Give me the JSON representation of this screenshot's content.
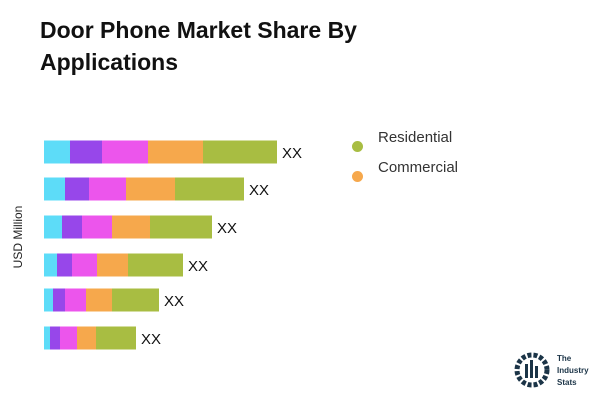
{
  "chart_data": {
    "type": "bar",
    "orientation": "horizontal",
    "stacked": true,
    "title": "Door Phone Market Share By Applications",
    "ylabel": "USD Million",
    "data_labels": [
      "XX",
      "XX",
      "XX",
      "XX",
      "XX",
      "XX"
    ],
    "segment_colors": [
      "#5ddcf8",
      "#9747ea",
      "#ec55ec",
      "#f6a84c",
      "#a8bd42"
    ],
    "rows": [
      [
        26,
        32,
        46,
        55,
        74
      ],
      [
        21,
        24,
        37,
        49,
        69
      ],
      [
        18,
        20,
        30,
        38,
        62
      ],
      [
        13,
        15,
        25,
        31,
        55
      ],
      [
        9,
        12,
        21,
        26,
        47
      ],
      [
        6,
        10,
        17,
        19,
        40
      ]
    ],
    "legend": [
      {
        "name": "Residential",
        "color": "#a8bd42"
      },
      {
        "name": "Commercial",
        "color": "#f6a84c"
      }
    ],
    "legend_position": "right",
    "grid": false
  },
  "logo": {
    "line1": "The",
    "line2": "Industry",
    "line3": "Stats"
  }
}
